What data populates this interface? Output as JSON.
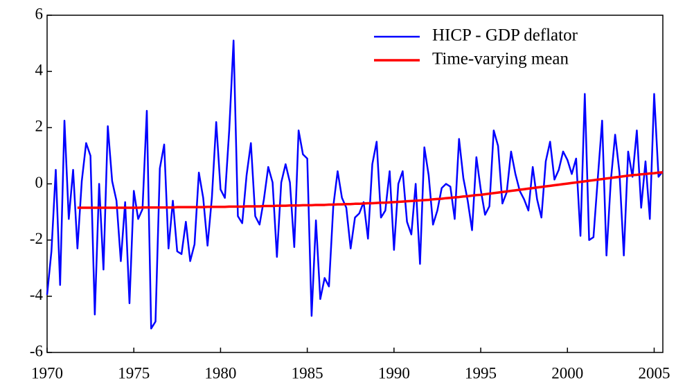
{
  "chart_data": {
    "type": "line",
    "x": [
      1970,
      1970.25,
      1970.5,
      1970.75,
      1971,
      1971.25,
      1971.5,
      1971.75,
      1972,
      1972.25,
      1972.5,
      1972.75,
      1973,
      1973.25,
      1973.5,
      1973.75,
      1974,
      1974.25,
      1974.5,
      1974.75,
      1975,
      1975.25,
      1975.5,
      1975.75,
      1976,
      1976.25,
      1976.5,
      1976.75,
      1977,
      1977.25,
      1977.5,
      1977.75,
      1978,
      1978.25,
      1978.5,
      1978.75,
      1979,
      1979.25,
      1979.5,
      1979.75,
      1980,
      1980.25,
      1980.5,
      1980.75,
      1981,
      1981.25,
      1981.5,
      1981.75,
      1982,
      1982.25,
      1982.5,
      1982.75,
      1983,
      1983.25,
      1983.5,
      1983.75,
      1984,
      1984.25,
      1984.5,
      1984.75,
      1985,
      1985.25,
      1985.5,
      1985.75,
      1986,
      1986.25,
      1986.5,
      1986.75,
      1987,
      1987.25,
      1987.5,
      1987.75,
      1988,
      1988.25,
      1988.5,
      1988.75,
      1989,
      1989.25,
      1989.5,
      1989.75,
      1990,
      1990.25,
      1990.5,
      1990.75,
      1991,
      1991.25,
      1991.5,
      1991.75,
      1992,
      1992.25,
      1992.5,
      1992.75,
      1993,
      1993.25,
      1993.5,
      1993.75,
      1994,
      1994.25,
      1994.5,
      1994.75,
      1995,
      1995.25,
      1995.5,
      1995.75,
      1996,
      1996.25,
      1996.5,
      1996.75,
      1997,
      1997.25,
      1997.5,
      1997.75,
      1998,
      1998.25,
      1998.5,
      1998.75,
      1999,
      1999.25,
      1999.5,
      1999.75,
      2000,
      2000.25,
      2000.5,
      2000.75,
      2001,
      2001.25,
      2001.5,
      2001.75,
      2002,
      2002.25,
      2002.5,
      2002.75,
      2003,
      2003.25,
      2003.5,
      2003.75,
      2004,
      2004.25,
      2004.5,
      2004.75,
      2005,
      2005.25,
      2005.5
    ],
    "series": [
      {
        "name": "HICP - GDP deflator",
        "color": "#0000ff",
        "values": [
          -3.95,
          -2.4,
          0.5,
          -3.6,
          2.25,
          -1.25,
          0.5,
          -2.3,
          0.1,
          1.45,
          1.0,
          -4.65,
          0.0,
          -3.05,
          2.05,
          0.1,
          -0.6,
          -2.75,
          -0.65,
          -4.25,
          -0.25,
          -1.25,
          -0.9,
          2.6,
          -5.15,
          -4.9,
          0.55,
          1.4,
          -2.3,
          -0.6,
          -2.4,
          -2.5,
          -1.35,
          -2.75,
          -2.15,
          0.4,
          -0.5,
          -2.2,
          -0.5,
          2.2,
          -0.2,
          -0.5,
          1.9,
          5.1,
          -1.15,
          -1.4,
          0.3,
          1.45,
          -1.15,
          -1.45,
          -0.55,
          0.6,
          0.05,
          -2.6,
          0.05,
          0.7,
          0.05,
          -2.25,
          1.9,
          1.05,
          0.9,
          -4.7,
          -1.3,
          -4.1,
          -3.35,
          -3.65,
          -0.8,
          0.45,
          -0.5,
          -0.85,
          -2.3,
          -1.2,
          -1.05,
          -0.65,
          -1.95,
          0.7,
          1.5,
          -1.2,
          -0.95,
          0.45,
          -2.35,
          0.0,
          0.45,
          -1.35,
          -1.8,
          0.0,
          -2.85,
          1.3,
          0.3,
          -1.45,
          -0.95,
          -0.15,
          0.0,
          -0.1,
          -1.25,
          1.6,
          0.2,
          -0.6,
          -1.65,
          0.95,
          -0.2,
          -1.1,
          -0.8,
          1.9,
          1.35,
          -0.7,
          -0.3,
          1.15,
          0.35,
          -0.25,
          -0.55,
          -0.95,
          0.6,
          -0.55,
          -1.2,
          0.8,
          1.5,
          0.15,
          0.5,
          1.15,
          0.85,
          0.35,
          0.9,
          -1.85,
          3.2,
          -2.0,
          -1.9,
          0.2,
          2.25,
          -2.55,
          0.1,
          1.75,
          0.4,
          -2.55,
          1.15,
          0.25,
          1.9,
          -0.85,
          0.8,
          -1.25,
          3.2,
          0.25,
          0.45
        ]
      },
      {
        "name": "Time-varying mean",
        "color": "#ff0000",
        "values": [
          null,
          null,
          null,
          null,
          null,
          null,
          null,
          -0.85,
          -0.85,
          -0.85,
          -0.85,
          -0.85,
          -0.85,
          -0.85,
          -0.85,
          -0.85,
          -0.85,
          -0.85,
          -0.85,
          -0.85,
          -0.85,
          -0.85,
          -0.84,
          -0.84,
          -0.84,
          -0.84,
          -0.84,
          -0.84,
          -0.84,
          -0.84,
          -0.83,
          -0.83,
          -0.83,
          -0.83,
          -0.83,
          -0.83,
          -0.83,
          -0.82,
          -0.82,
          -0.82,
          -0.82,
          -0.82,
          -0.81,
          -0.81,
          -0.81,
          -0.81,
          -0.8,
          -0.8,
          -0.8,
          -0.8,
          -0.79,
          -0.79,
          -0.79,
          -0.78,
          -0.78,
          -0.78,
          -0.77,
          -0.77,
          -0.77,
          -0.76,
          -0.76,
          -0.76,
          -0.75,
          -0.75,
          -0.75,
          -0.74,
          -0.74,
          -0.73,
          -0.73,
          -0.72,
          -0.72,
          -0.71,
          -0.71,
          -0.7,
          -0.69,
          -0.69,
          -0.68,
          -0.67,
          -0.67,
          -0.66,
          -0.65,
          -0.64,
          -0.63,
          -0.62,
          -0.61,
          -0.6,
          -0.59,
          -0.58,
          -0.57,
          -0.55,
          -0.54,
          -0.53,
          -0.51,
          -0.5,
          -0.48,
          -0.47,
          -0.45,
          -0.44,
          -0.42,
          -0.4,
          -0.39,
          -0.37,
          -0.35,
          -0.33,
          -0.31,
          -0.29,
          -0.27,
          -0.25,
          -0.23,
          -0.21,
          -0.19,
          -0.17,
          -0.15,
          -0.13,
          -0.11,
          -0.09,
          -0.07,
          -0.05,
          -0.03,
          -0.01,
          0.01,
          0.03,
          0.05,
          0.07,
          0.09,
          0.11,
          0.13,
          0.15,
          0.17,
          0.19,
          0.21,
          0.23,
          0.25,
          0.27,
          0.29,
          0.31,
          0.32,
          0.34,
          0.35,
          0.37,
          0.38,
          0.4,
          0.41
        ]
      }
    ],
    "xlim": [
      1970,
      2005.5
    ],
    "xticks": [
      1970,
      1975,
      1980,
      1985,
      1990,
      1995,
      2000,
      2005
    ],
    "ylim": [
      -6,
      6
    ],
    "yticks": [
      -6,
      -4,
      -2,
      0,
      2,
      4,
      6
    ],
    "legend": "upper right"
  }
}
